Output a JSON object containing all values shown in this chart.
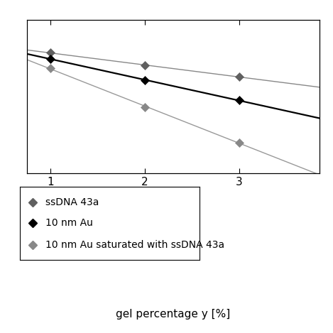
{
  "series": [
    {
      "label": "ssDNA 43a",
      "x": [
        1,
        2,
        3
      ],
      "y": [
        4.95,
        4.78,
        4.62
      ],
      "color": "#606060",
      "line_color": "#888888",
      "marker": "D",
      "markersize": 6,
      "linewidth": 1.0,
      "zorder": 3
    },
    {
      "label": "10 nm Au",
      "x": [
        1,
        2,
        3
      ],
      "y": [
        4.87,
        4.57,
        4.3
      ],
      "color": "#000000",
      "line_color": "#000000",
      "marker": "D",
      "markersize": 6,
      "linewidth": 1.6,
      "zorder": 4
    },
    {
      "label": "10 nm Au saturated with ssDNA 43a",
      "x": [
        1,
        2,
        3
      ],
      "y": [
        4.74,
        4.2,
        3.72
      ],
      "color": "#888888",
      "line_color": "#999999",
      "marker": "D",
      "markersize": 6,
      "linewidth": 1.0,
      "zorder": 2
    }
  ],
  "xlabel": "gel percentage y [%]",
  "xlim": [
    0.75,
    3.85
  ],
  "ylim": [
    3.3,
    5.4
  ],
  "xticks": [
    1,
    2,
    3
  ],
  "legend_marker_colors": [
    "#606060",
    "#000000",
    "#888888"
  ],
  "legend_labels": [
    "ssDNA 43a",
    "10 nm Au",
    "10 nm Au saturated with ssDNA 43a"
  ],
  "background_color": "#ffffff",
  "font_size": 11,
  "legend_font_size": 10
}
